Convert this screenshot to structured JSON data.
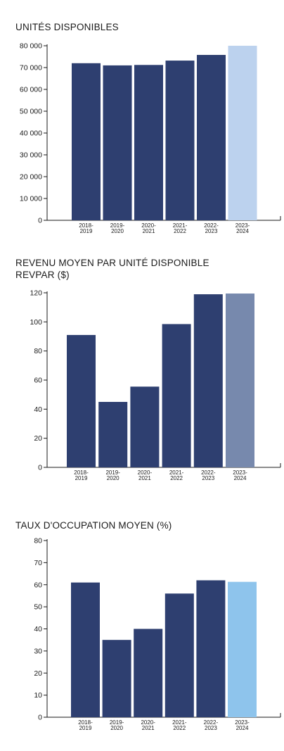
{
  "colors": {
    "bar": "#2e3f70",
    "axis": "#1a1a1a"
  },
  "chart_data": [
    {
      "type": "bar",
      "title": "UNITÉS DISPONIBLES",
      "categories": [
        [
          "2018-",
          "2019"
        ],
        [
          "2019-",
          "2020"
        ],
        [
          "2020-",
          "2021"
        ],
        [
          "2021-",
          "2022"
        ],
        [
          "2022-",
          "2023"
        ],
        [
          "2023-",
          "2024"
        ]
      ],
      "values": [
        72000,
        71000,
        71200,
        73200,
        75800,
        80000
      ],
      "bar_colors": [
        "#2e3f70",
        "#2e3f70",
        "#2e3f70",
        "#2e3f70",
        "#2e3f70",
        "#bcd2ee"
      ],
      "ylim": [
        0,
        80000
      ],
      "yticks": [
        0,
        10000,
        20000,
        30000,
        40000,
        50000,
        60000,
        70000,
        80000
      ],
      "ytick_labels": [
        "0",
        "10 000",
        "20 000",
        "30 000",
        "40 000",
        "50 000",
        "60 000",
        "70 000",
        "80 000"
      ]
    },
    {
      "type": "bar",
      "title": "REVENU MOYEN PAR UNITÉ DISPONIBLE\nREVPAR ($)",
      "categories": [
        [
          "2018-",
          "2019"
        ],
        [
          "2019-",
          "2020"
        ],
        [
          "2020-",
          "2021"
        ],
        [
          "2021-",
          "2022"
        ],
        [
          "2022-",
          "2023"
        ],
        [
          "2023-",
          "2024"
        ]
      ],
      "values": [
        91,
        45,
        55.5,
        98.5,
        119,
        119.5
      ],
      "bar_colors": [
        "#2e3f70",
        "#2e3f70",
        "#2e3f70",
        "#2e3f70",
        "#2e3f70",
        "#7789ad"
      ],
      "ylim": [
        0,
        120
      ],
      "yticks": [
        0,
        20,
        40,
        60,
        80,
        100,
        120
      ],
      "ytick_labels": [
        "0",
        "20",
        "40",
        "60",
        "80",
        "100",
        "120"
      ]
    },
    {
      "type": "bar",
      "title": "TAUX D'OCCUPATION MOYEN (%)",
      "categories": [
        [
          "2018-",
          "2019"
        ],
        [
          "2019-",
          "2020"
        ],
        [
          "2020-",
          "2021"
        ],
        [
          "2021-",
          "2022"
        ],
        [
          "2022-",
          "2023"
        ],
        [
          "2023-",
          "2024"
        ]
      ],
      "values": [
        61,
        35,
        40,
        56,
        62,
        61.3
      ],
      "bar_colors": [
        "#2e3f70",
        "#2e3f70",
        "#2e3f70",
        "#2e3f70",
        "#2e3f70",
        "#8ec4ec"
      ],
      "ylim": [
        0,
        80
      ],
      "yticks": [
        0,
        10,
        20,
        30,
        40,
        50,
        60,
        70,
        80
      ],
      "ytick_labels": [
        "0",
        "10",
        "20",
        "30",
        "40",
        "50",
        "60",
        "70",
        "80"
      ]
    }
  ]
}
